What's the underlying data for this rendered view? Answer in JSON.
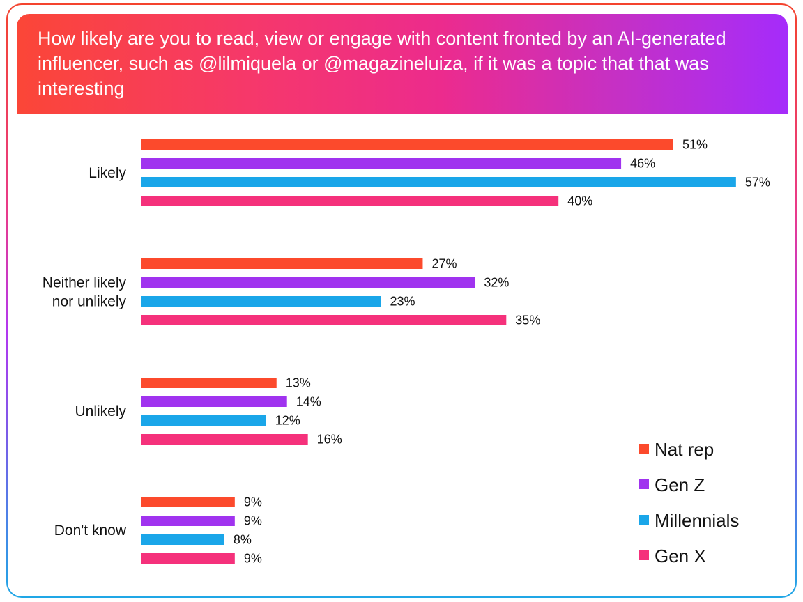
{
  "header": {
    "title": "How likely are you to read, view or engage with content fronted by an AI-generated influencer, such as @lilmiquela or @magazineluiza, if it was a topic that that was interesting"
  },
  "chart_data": {
    "type": "bar",
    "orientation": "horizontal",
    "title": "How likely are you to read, view or engage with content fronted by an AI-generated influencer, such as @lilmiquela or @magazineluiza, if it was a topic that that was interesting",
    "categories": [
      [
        "Likely"
      ],
      [
        "Neither likely",
        "nor unlikely"
      ],
      [
        "Unlikely"
      ],
      [
        "Don't know"
      ]
    ],
    "series": [
      {
        "name": "Nat rep",
        "color": "#fc4a2c",
        "values": [
          51,
          27,
          13,
          9
        ],
        "labels": [
          "51%",
          "27%",
          "13%",
          "9%"
        ]
      },
      {
        "name": "Gen Z",
        "color": "#a033ef",
        "values": [
          46,
          32,
          14,
          9
        ],
        "labels": [
          "46%",
          "32%",
          "14%",
          "9%"
        ]
      },
      {
        "name": "Millennials",
        "color": "#1aa6e9",
        "values": [
          57,
          23,
          12,
          8
        ],
        "labels": [
          "57%",
          "23%",
          "12%",
          "8%"
        ]
      },
      {
        "name": "Gen X",
        "color": "#f5317b",
        "values": [
          40,
          35,
          16,
          9
        ],
        "labels": [
          "40%",
          "35%",
          "16%",
          "9%"
        ]
      }
    ],
    "unit": "%",
    "xlim": [
      0,
      57
    ],
    "grid": false,
    "legend": "bottom-right"
  }
}
